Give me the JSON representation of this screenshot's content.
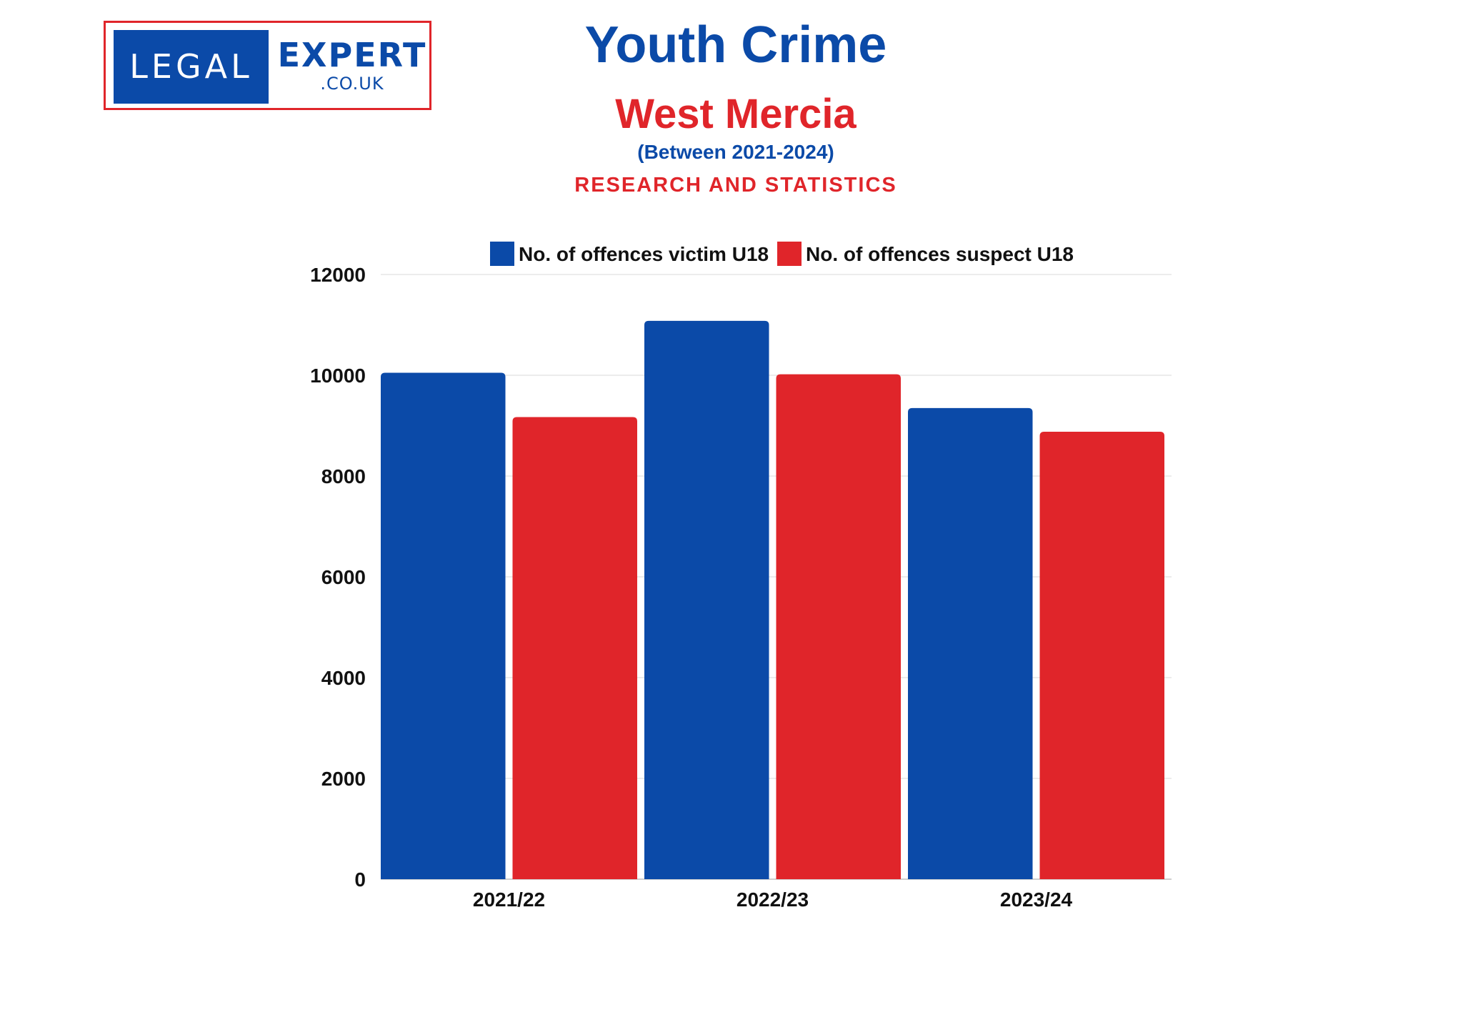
{
  "logo": {
    "left_text": "LEGAL",
    "right_text": "EXPERT",
    "sub_text": ".CO.UK"
  },
  "header": {
    "title": "Youth Crime",
    "region": "West Mercia",
    "period": "(Between 2021-2024)",
    "tagline": "RESEARCH AND STATISTICS"
  },
  "colors": {
    "blue": "#0b4aa8",
    "red": "#e0252a",
    "grid": "#e6e6e6"
  },
  "chart_data": {
    "type": "bar",
    "categories": [
      "2021/22",
      "2022/23",
      "2023/24"
    ],
    "series": [
      {
        "name": "No. of offences victim U18",
        "color": "#0b4aa8",
        "values": [
          10050,
          11080,
          9350
        ]
      },
      {
        "name": "No. of offences suspect U18",
        "color": "#e0252a",
        "values": [
          9170,
          10020,
          8880
        ]
      }
    ],
    "title": "",
    "xlabel": "",
    "ylabel": "",
    "ylim": [
      0,
      12000
    ],
    "yticks": [
      "0",
      "2000",
      "4000",
      "6000",
      "8000",
      "10000",
      "12000"
    ],
    "grid": true,
    "legend": "top"
  }
}
